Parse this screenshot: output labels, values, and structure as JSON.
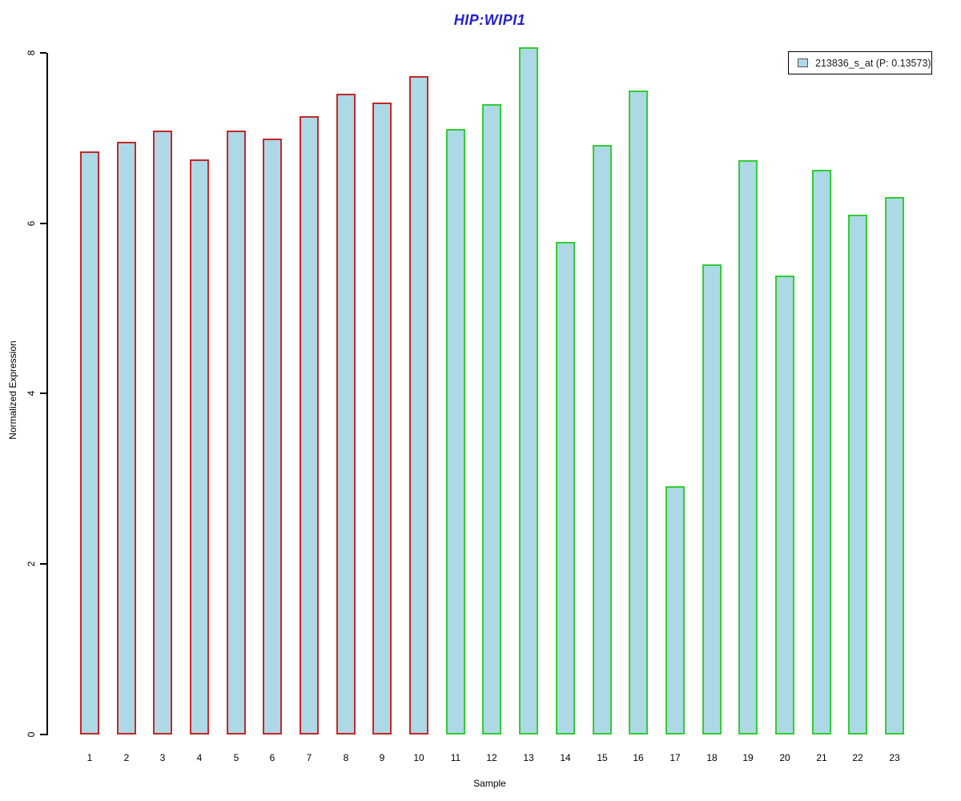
{
  "chart_data": {
    "type": "bar",
    "title": "HIP:WIPI1",
    "title_color": "#2222cc",
    "xlabel": "Sample",
    "ylabel": "Normalized Expression",
    "ylim": [
      0,
      8
    ],
    "yticks": [
      0,
      2,
      4,
      6,
      8
    ],
    "grid": false,
    "legend_position": "top-right",
    "categories": [
      "1",
      "2",
      "3",
      "4",
      "5",
      "6",
      "7",
      "8",
      "9",
      "10",
      "11",
      "12",
      "13",
      "14",
      "15",
      "16",
      "17",
      "18",
      "19",
      "20",
      "21",
      "22",
      "23"
    ],
    "values": [
      6.84,
      6.96,
      7.09,
      6.75,
      7.09,
      6.99,
      7.26,
      7.52,
      7.42,
      7.73,
      7.11,
      7.4,
      8.07,
      5.78,
      6.92,
      7.56,
      2.91,
      5.52,
      6.74,
      5.39,
      6.63,
      6.1,
      6.31
    ],
    "bar_fill": "#add8e6",
    "bar_border_colors": [
      "#c42727",
      "#c42727",
      "#c42727",
      "#c42727",
      "#c42727",
      "#c42727",
      "#c42727",
      "#c42727",
      "#c42727",
      "#c42727",
      "#32cd32",
      "#32cd32",
      "#32cd32",
      "#32cd32",
      "#32cd32",
      "#32cd32",
      "#32cd32",
      "#32cd32",
      "#32cd32",
      "#32cd32",
      "#32cd32",
      "#32cd32",
      "#32cd32"
    ],
    "legend": {
      "label": "213836_s_at (P: 0.13573)",
      "swatch_fill": "#add8e6",
      "swatch_border": "#555555"
    }
  }
}
